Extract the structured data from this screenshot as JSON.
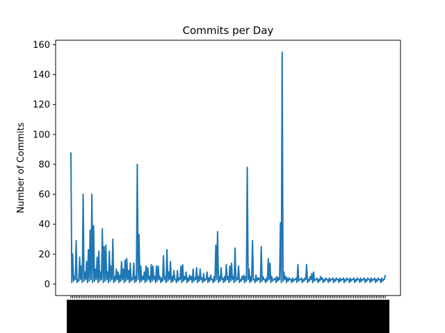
{
  "chart_data": {
    "type": "line",
    "title": "Commits per Day",
    "xlabel": "",
    "ylabel": "Number of Commits",
    "ylim": [
      -7.7,
      163
    ],
    "yticks": [
      0,
      20,
      40,
      60,
      80,
      100,
      120,
      140,
      160
    ],
    "grid": false,
    "legend": "none",
    "x_tick_labels_note": "Dense overlapping date labels (unreadable)",
    "series": [
      {
        "color": "#1f77b4",
        "x": [
          0,
          5,
          10,
          15,
          20,
          25,
          30,
          35,
          40,
          45,
          50,
          55,
          60,
          65,
          70,
          75,
          80,
          85,
          90,
          95,
          100,
          105,
          110,
          115,
          120,
          125,
          130,
          135,
          140,
          145,
          150,
          155,
          160,
          165,
          170,
          175,
          180,
          185,
          190,
          195,
          200,
          205,
          210,
          215,
          220,
          225,
          230,
          235,
          240,
          245,
          250,
          255,
          260,
          265,
          270,
          275,
          280,
          285,
          290,
          295,
          300,
          305,
          310,
          315,
          320,
          325,
          330,
          335,
          340,
          345,
          350,
          355,
          360,
          365,
          370,
          375,
          380,
          385,
          390,
          395,
          400,
          405,
          410,
          415,
          420,
          425,
          430,
          435,
          440,
          445,
          450,
          455,
          460,
          465,
          470,
          475,
          480,
          485,
          490,
          495,
          500,
          505,
          510,
          515,
          520,
          525,
          530,
          535,
          540,
          545,
          550,
          555,
          560,
          565,
          570,
          575,
          580,
          585,
          590,
          595,
          600,
          605,
          610,
          615,
          620,
          625,
          630,
          635,
          640,
          645,
          650,
          655,
          660,
          665,
          670,
          675,
          680,
          685,
          690,
          695,
          700,
          705,
          710,
          715,
          720,
          725,
          730,
          735,
          740,
          745,
          750,
          755,
          760,
          765,
          770,
          775,
          780,
          785,
          790,
          795,
          800,
          805,
          810,
          815,
          820,
          825,
          830,
          835,
          840,
          845,
          850,
          855,
          860,
          865,
          870,
          875,
          880,
          885,
          890,
          895,
          900
        ],
        "values": [
          88,
          20,
          5,
          29,
          3,
          18,
          12,
          60,
          8,
          15,
          23,
          36,
          60,
          39,
          10,
          18,
          22,
          8,
          37,
          25,
          26,
          8,
          22,
          12,
          30,
          5,
          10,
          8,
          6,
          15,
          10,
          16,
          17,
          9,
          14,
          4,
          14,
          5,
          80,
          33,
          12,
          5,
          8,
          12,
          11,
          5,
          13,
          12,
          5,
          12,
          12,
          5,
          4,
          19,
          5,
          23,
          8,
          15,
          5,
          9,
          3,
          9,
          4,
          12,
          13,
          5,
          8,
          4,
          6,
          5,
          10,
          4,
          11,
          5,
          10,
          4,
          7,
          3,
          8,
          4,
          6,
          3,
          5,
          26,
          35,
          5,
          11,
          4,
          5,
          13,
          5,
          12,
          14,
          5,
          24,
          4,
          12,
          3,
          5,
          6,
          5,
          78,
          10,
          5,
          29,
          3,
          6,
          4,
          4,
          25,
          5,
          3,
          4,
          17,
          14,
          5,
          3,
          4,
          5,
          4,
          41,
          155,
          8,
          5,
          4,
          4,
          3,
          4,
          3,
          4,
          13,
          3,
          4,
          3,
          4,
          13,
          3,
          5,
          7,
          8,
          3,
          4,
          3,
          5,
          4,
          3,
          4,
          3,
          4,
          3,
          4,
          3,
          4,
          3,
          4,
          3,
          4,
          3,
          4,
          3,
          4,
          3,
          4,
          3,
          4,
          3,
          4,
          3,
          4,
          3,
          4,
          3,
          4,
          3,
          4,
          3,
          4,
          3,
          4,
          3,
          6
        ]
      }
    ]
  }
}
